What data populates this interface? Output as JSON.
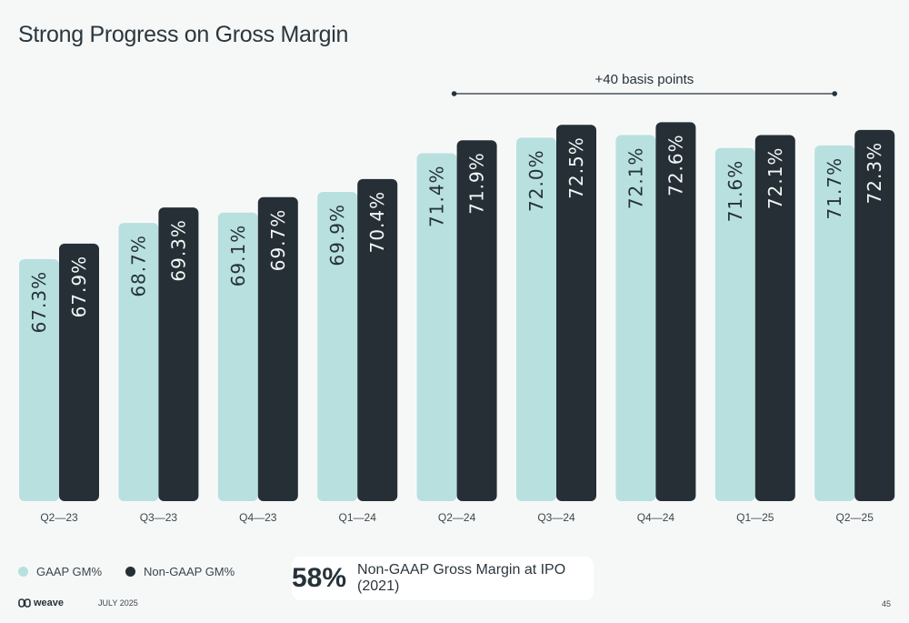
{
  "title": "Strong Progress on Gross Margin",
  "colors": {
    "gaap": "#b8e0df",
    "non_gaap": "#262f36",
    "text_light": "#26323a",
    "text_dark": "#f2f6f6"
  },
  "chart_data": {
    "type": "bar",
    "categories": [
      "Q2—23",
      "Q3—23",
      "Q4—23",
      "Q1—24",
      "Q2—24",
      "Q3—24",
      "Q4—24",
      "Q1—25",
      "Q2—25"
    ],
    "series": [
      {
        "name": "GAAP GM%",
        "values": [
          67.3,
          68.7,
          69.1,
          69.9,
          71.4,
          72.0,
          72.1,
          71.6,
          71.7
        ],
        "labels": [
          "67.3%",
          "68.7%",
          "69.1%",
          "69.9%",
          "71.4%",
          "72.0%",
          "72.1%",
          "71.6%",
          "71.7%"
        ]
      },
      {
        "name": "Non-GAAP GM%",
        "values": [
          67.9,
          69.3,
          69.7,
          70.4,
          71.9,
          72.5,
          72.6,
          72.1,
          72.3
        ],
        "labels": [
          "67.9%",
          "69.3%",
          "69.7%",
          "70.4%",
          "71.9%",
          "72.5%",
          "72.6%",
          "72.1%",
          "72.3%"
        ]
      }
    ],
    "ylim": [
      58,
      73
    ],
    "annotation": {
      "text": "+40 basis points",
      "from": "Q2—24",
      "to": "Q2—25"
    }
  },
  "legend": {
    "gaap": "GAAP GM%",
    "non_gaap": "Non-GAAP GM%"
  },
  "callout": {
    "value": "58%",
    "text": "Non-GAAP Gross Margin at IPO (2021)"
  },
  "footer": {
    "brand": "weave",
    "date": "JULY 2025",
    "page": "45"
  }
}
